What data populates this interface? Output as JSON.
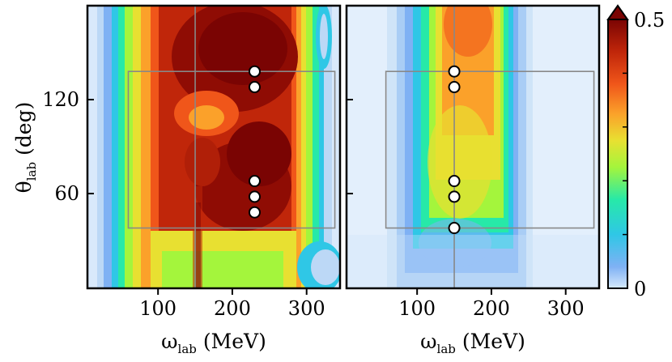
{
  "chart_data": {
    "type": "heatmap",
    "colormap": "turbo",
    "colorbar": {
      "min": 0,
      "max": 0.5,
      "min_label": "0",
      "max_label": "0.5",
      "extend": "max"
    },
    "x_axis": {
      "symbol": "ω",
      "subscript": "lab",
      "unit": "(MeV)",
      "range": [
        5,
        345
      ],
      "ticks": [
        100,
        200,
        300
      ],
      "tick_labels": [
        "100",
        "200",
        "300"
      ]
    },
    "y_axis": {
      "symbol": "θ",
      "subscript": "lab",
      "unit": "(deg)",
      "range": [
        -0.5,
        180
      ],
      "ticks": [
        60,
        120
      ],
      "tick_labels": [
        "60",
        "120"
      ]
    },
    "panels": [
      {
        "name": "left",
        "crosshair": {
          "omega": 150
        },
        "region": {
          "omega": [
            60,
            338
          ],
          "theta": [
            38,
            138
          ]
        },
        "points": [
          {
            "omega": 230,
            "theta": 138
          },
          {
            "omega": 230,
            "theta": 128
          },
          {
            "omega": 230,
            "theta": 68
          },
          {
            "omega": 230,
            "theta": 58
          },
          {
            "omega": 230,
            "theta": 48
          }
        ]
      },
      {
        "name": "right",
        "crosshair": {
          "omega": 150
        },
        "region": {
          "omega": [
            58,
            338
          ],
          "theta": [
            38,
            138
          ]
        },
        "points": [
          {
            "omega": 150,
            "theta": 138
          },
          {
            "omega": 150,
            "theta": 128
          },
          {
            "omega": 150,
            "theta": 68
          },
          {
            "omega": 150,
            "theta": 58
          },
          {
            "omega": 150,
            "theta": 38
          }
        ]
      }
    ]
  }
}
